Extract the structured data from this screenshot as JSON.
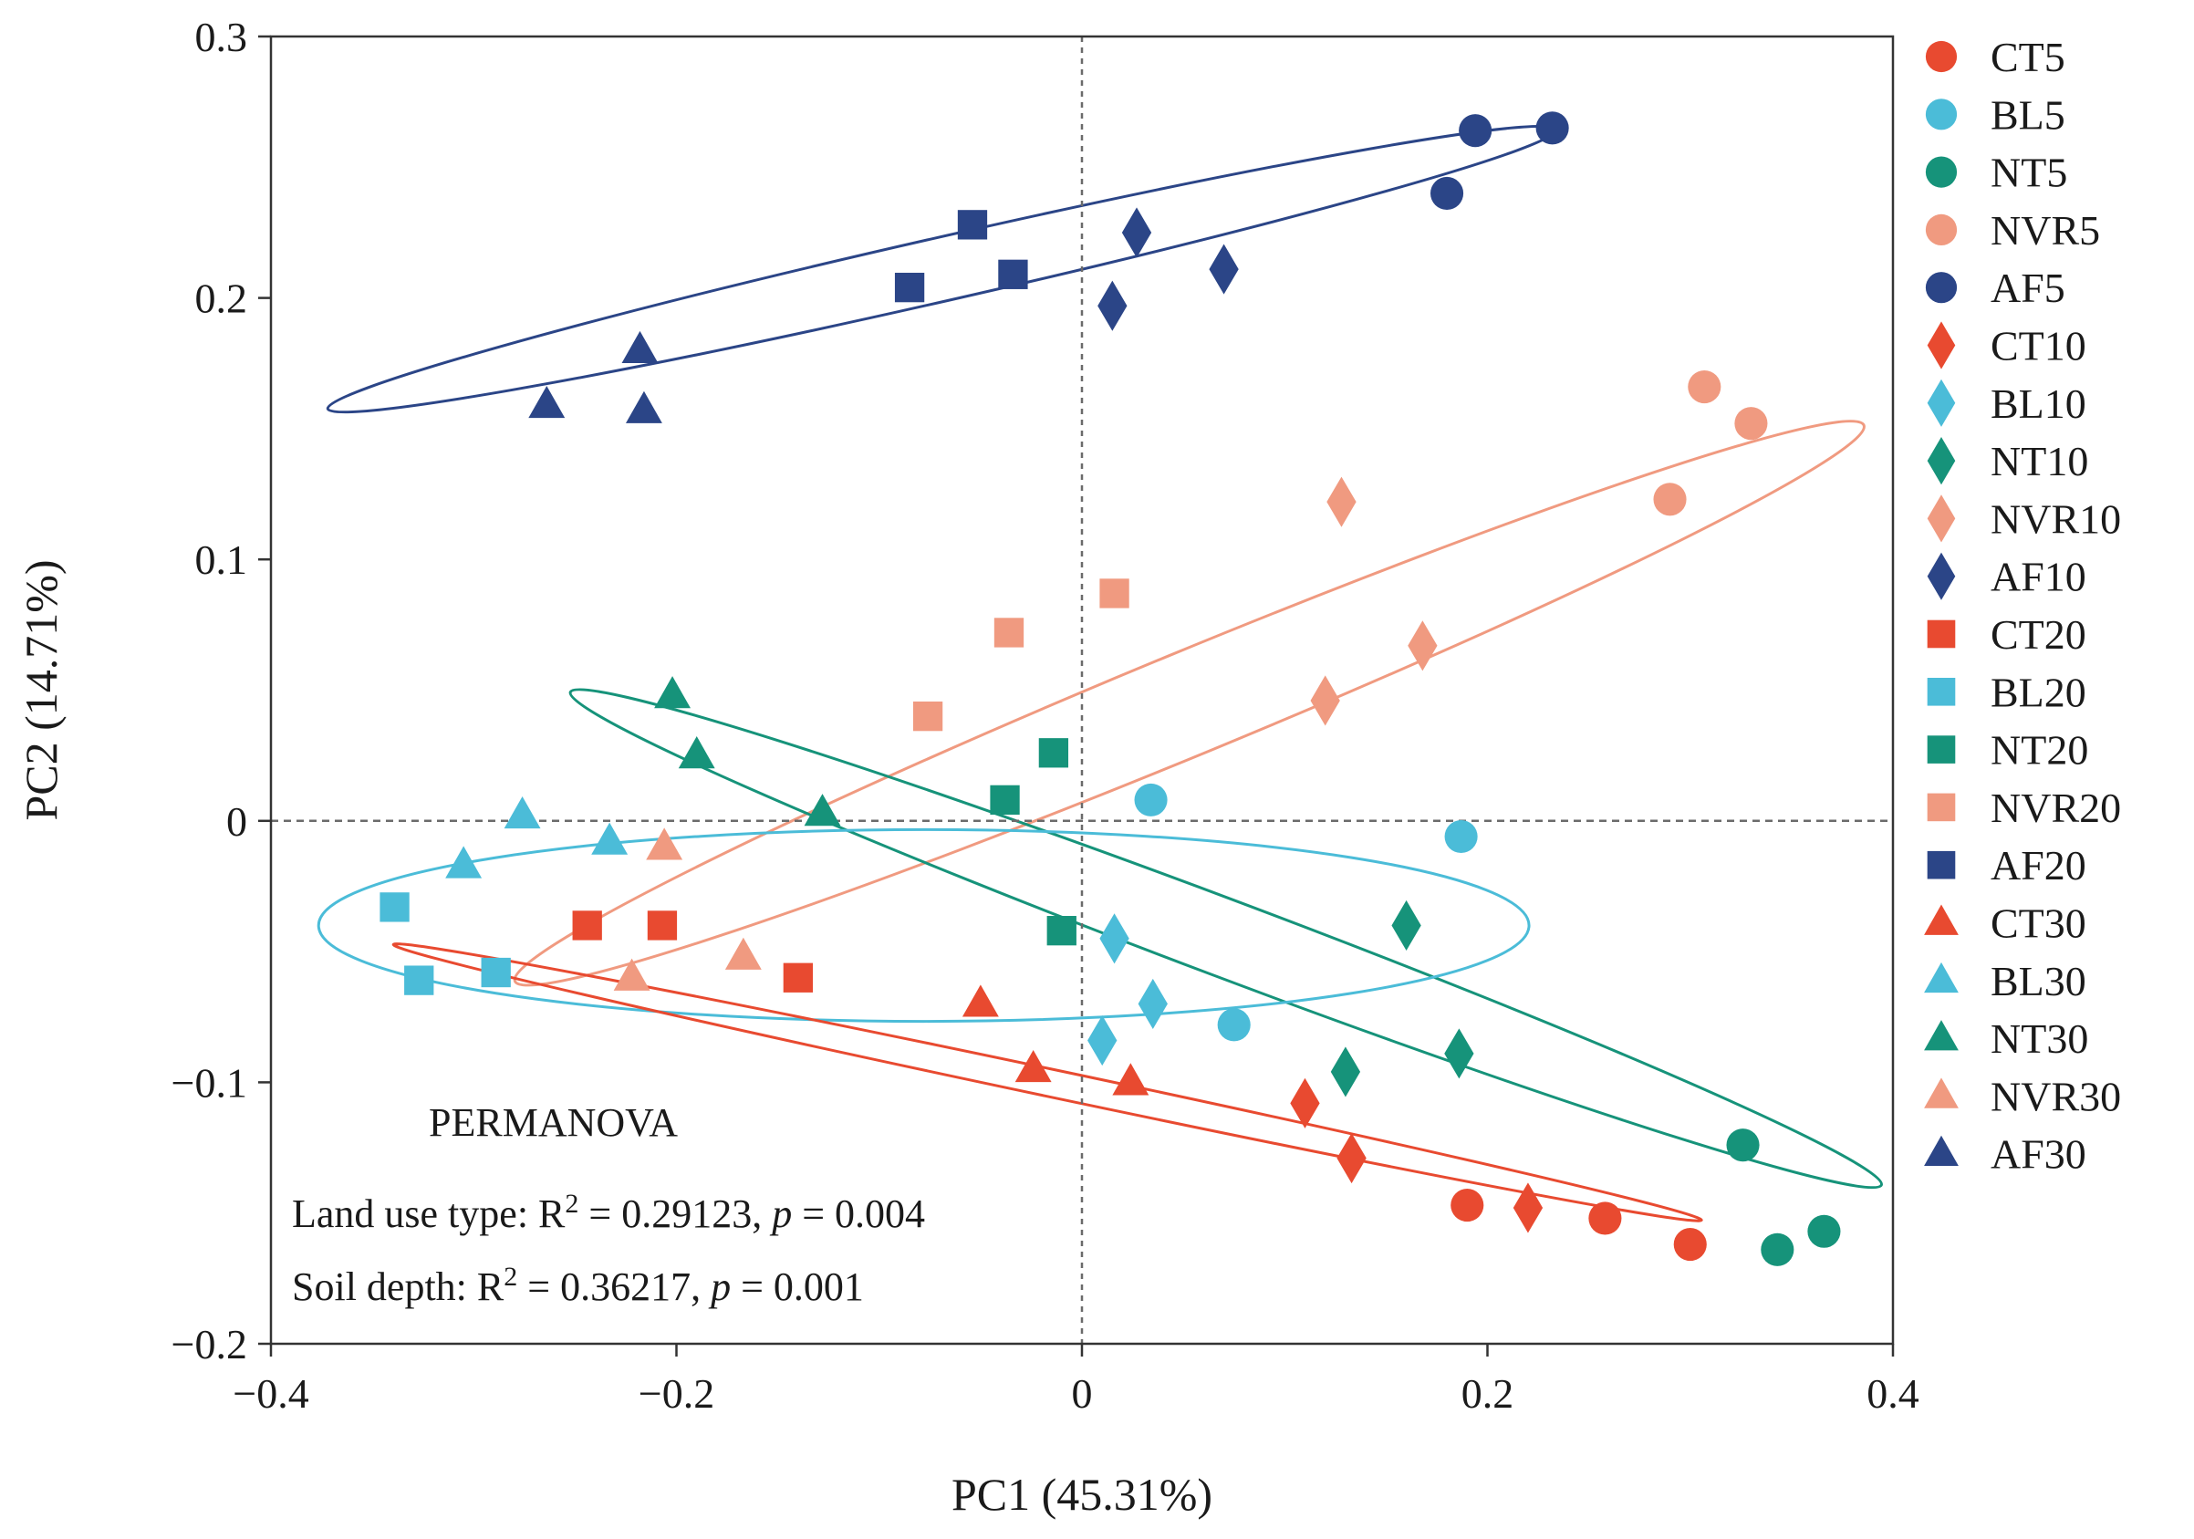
{
  "chart_data": {
    "type": "scatter",
    "title": "",
    "xlabel": "PC1 (45.31%)",
    "ylabel": "PC2 (14.71%)",
    "xlim": [
      -0.4,
      0.4
    ],
    "ylim": [
      -0.2,
      0.3
    ],
    "x_ticks": [
      -0.4,
      -0.2,
      0,
      0.2,
      0.4
    ],
    "x_tick_labels": [
      "−0.4",
      "−0.2",
      "0",
      "0.2",
      "0.4"
    ],
    "y_ticks": [
      -0.2,
      -0.1,
      0,
      0.1,
      0.2,
      0.3
    ],
    "y_tick_labels": [
      "−0.2",
      "−0.1",
      "0",
      "0.1",
      "0.2",
      "0.3"
    ],
    "grid": false,
    "reference_lines": "dashed lines at x = 0 and y = 0",
    "legend_position": "right",
    "colors": {
      "CT": "#e84a30",
      "BL": "#4bbcd8",
      "NT": "#16937a",
      "NVR": "#f09a80",
      "AF": "#2b4587"
    },
    "series": [
      {
        "name": "CT5",
        "group": "CT",
        "marker": "circle",
        "points": [
          [
            0.19,
            -0.147
          ],
          [
            0.258,
            -0.152
          ],
          [
            0.3,
            -0.162
          ]
        ]
      },
      {
        "name": "BL5",
        "group": "BL",
        "marker": "circle",
        "points": [
          [
            0.034,
            0.008
          ],
          [
            0.075,
            -0.078
          ],
          [
            0.187,
            -0.006
          ]
        ]
      },
      {
        "name": "NT5",
        "group": "NT",
        "marker": "circle",
        "points": [
          [
            0.326,
            -0.124
          ],
          [
            0.343,
            -0.164
          ],
          [
            0.366,
            -0.157
          ]
        ]
      },
      {
        "name": "NVR5",
        "group": "NVR",
        "marker": "circle",
        "points": [
          [
            0.29,
            0.123
          ],
          [
            0.307,
            0.166
          ],
          [
            0.33,
            0.152
          ]
        ]
      },
      {
        "name": "AF5",
        "group": "AF",
        "marker": "circle",
        "points": [
          [
            0.18,
            0.24
          ],
          [
            0.194,
            0.264
          ],
          [
            0.232,
            0.265
          ]
        ]
      },
      {
        "name": "CT10",
        "group": "CT",
        "marker": "diamond",
        "points": [
          [
            0.11,
            -0.108
          ],
          [
            0.133,
            -0.129
          ],
          [
            0.22,
            -0.148
          ]
        ]
      },
      {
        "name": "BL10",
        "group": "BL",
        "marker": "diamond",
        "points": [
          [
            0.01,
            -0.084
          ],
          [
            0.016,
            -0.045
          ],
          [
            0.035,
            -0.07
          ]
        ]
      },
      {
        "name": "NT10",
        "group": "NT",
        "marker": "diamond",
        "points": [
          [
            0.13,
            -0.096
          ],
          [
            0.16,
            -0.04
          ],
          [
            0.186,
            -0.089
          ]
        ]
      },
      {
        "name": "NVR10",
        "group": "NVR",
        "marker": "diamond",
        "points": [
          [
            0.12,
            0.046
          ],
          [
            0.128,
            0.122
          ],
          [
            0.168,
            0.067
          ]
        ]
      },
      {
        "name": "AF10",
        "group": "AF",
        "marker": "diamond",
        "points": [
          [
            0.015,
            0.197
          ],
          [
            0.027,
            0.225
          ],
          [
            0.07,
            0.211
          ]
        ]
      },
      {
        "name": "CT20",
        "group": "CT",
        "marker": "square",
        "points": [
          [
            -0.244,
            -0.04
          ],
          [
            -0.207,
            -0.04
          ],
          [
            -0.14,
            -0.06
          ]
        ]
      },
      {
        "name": "BL20",
        "group": "BL",
        "marker": "square",
        "points": [
          [
            -0.339,
            -0.033
          ],
          [
            -0.327,
            -0.061
          ],
          [
            -0.289,
            -0.058
          ]
        ]
      },
      {
        "name": "NT20",
        "group": "NT",
        "marker": "square",
        "points": [
          [
            -0.038,
            0.008
          ],
          [
            -0.014,
            0.026
          ],
          [
            -0.01,
            -0.042
          ]
        ]
      },
      {
        "name": "NVR20",
        "group": "NVR",
        "marker": "square",
        "points": [
          [
            -0.076,
            0.04
          ],
          [
            -0.036,
            0.072
          ],
          [
            0.016,
            0.087
          ]
        ]
      },
      {
        "name": "AF20",
        "group": "AF",
        "marker": "square",
        "points": [
          [
            -0.085,
            0.204
          ],
          [
            -0.054,
            0.228
          ],
          [
            -0.034,
            0.209
          ]
        ]
      },
      {
        "name": "CT30",
        "group": "CT",
        "marker": "triangle",
        "points": [
          [
            -0.05,
            -0.07
          ],
          [
            -0.024,
            -0.095
          ],
          [
            0.024,
            -0.1
          ]
        ]
      },
      {
        "name": "BL30",
        "group": "BL",
        "marker": "triangle",
        "points": [
          [
            -0.305,
            -0.017
          ],
          [
            -0.276,
            0.002
          ],
          [
            -0.233,
            -0.008
          ]
        ]
      },
      {
        "name": "NT30",
        "group": "NT",
        "marker": "triangle",
        "points": [
          [
            -0.202,
            0.048
          ],
          [
            -0.19,
            0.025
          ],
          [
            -0.128,
            0.003
          ]
        ]
      },
      {
        "name": "NVR30",
        "group": "NVR",
        "marker": "triangle",
        "points": [
          [
            -0.222,
            -0.06
          ],
          [
            -0.206,
            -0.01
          ],
          [
            -0.167,
            -0.052
          ]
        ]
      },
      {
        "name": "AF30",
        "group": "AF",
        "marker": "triangle",
        "points": [
          [
            -0.264,
            0.159
          ],
          [
            -0.218,
            0.18
          ],
          [
            -0.216,
            0.157
          ]
        ]
      }
    ],
    "ellipses": [
      {
        "group": "AF",
        "cx": -0.069,
        "cy": 0.211,
        "rx": 0.3107,
        "ry": 0.0157,
        "angle_deg": 12.8
      },
      {
        "group": "NVR",
        "cx": 0.053,
        "cy": 0.045,
        "rx": 0.3598,
        "ry": 0.0255,
        "angle_deg": 22.4
      },
      {
        "group": "NT",
        "cx": 0.071,
        "cy": -0.045,
        "rx": 0.3454,
        "ry": 0.0191,
        "angle_deg": -20.6
      },
      {
        "group": "BL",
        "cx": -0.078,
        "cy": -0.04,
        "rx": 0.2985,
        "ry": 0.0473,
        "angle_deg": 0
      },
      {
        "group": "CT",
        "cx": -0.017,
        "cy": -0.1,
        "rx": 0.3297,
        "ry": 0.0068,
        "angle_deg": -11.9
      }
    ],
    "annotations": {
      "heading": "PERMANOVA",
      "line1_prefix": "Land use type: R",
      "line1_sup": "2",
      "line1_mid": " = 0.29123, ",
      "line1_p": "p",
      "line1_end": " = 0.004",
      "line2_prefix": "Soil depth: R",
      "line2_sup": "2",
      "line2_mid": " = 0.36217, ",
      "line2_p": "p",
      "line2_end": " = 0.001"
    }
  }
}
